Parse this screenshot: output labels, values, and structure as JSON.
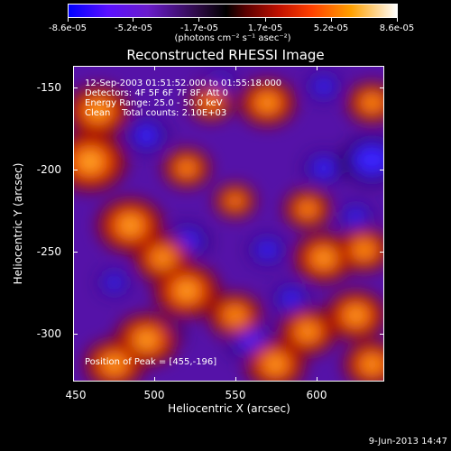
{
  "colorbar": {
    "tick_labels": [
      "-8.6e-05",
      "-5.2e-05",
      "-1.7e-05",
      "1.7e-05",
      "5.2e-05",
      "8.6e-05"
    ],
    "units": "(photons cm⁻² s⁻¹ asec⁻²)",
    "colors": [
      "#0000ff",
      "#6a00ff",
      "#000000",
      "#8a0000",
      "#ff3000",
      "#ffd000",
      "#ffffff"
    ]
  },
  "plot": {
    "title": "Reconstructed RHESSI Image",
    "info_lines": [
      "12-Sep-2003 01:51:52.000 to 01:55:18.000",
      "Detectors: 4F 5F 6F 7F 8F, Att 0",
      "Energy Range: 25.0 - 50.0 keV",
      "Clean    Total counts: 2.10E+03"
    ],
    "peak_text": "Position of Peak = [455,-196]",
    "xlabel": "Heliocentric X (arcsec)",
    "ylabel": "Heliocentric Y (arcsec)",
    "x_ticks": [
      "450",
      "500",
      "550",
      "600"
    ],
    "y_ticks": [
      "-150",
      "-200",
      "-250",
      "-300"
    ]
  },
  "footer": {
    "date": "9-Jun-2013 14:47"
  },
  "chart_data": {
    "type": "heatmap",
    "title": "Reconstructed RHESSI Image",
    "xlabel": "Heliocentric X (arcsec)",
    "ylabel": "Heliocentric Y (arcsec)",
    "xlim": [
      445,
      637
    ],
    "ylim": [
      -330,
      -138
    ],
    "value_range": [
      -8.6e-05,
      8.6e-05
    ],
    "colorscale": "blue-purple-black-red-yellow-white",
    "peak": [
      455,
      -196
    ],
    "hot_regions": [
      {
        "x": 455,
        "y": -196,
        "value": 8.6e-05
      },
      {
        "x": 460,
        "y": -165,
        "value": 7e-05
      },
      {
        "x": 480,
        "y": -235,
        "value": 7.5e-05
      },
      {
        "x": 500,
        "y": -255,
        "value": 6e-05
      },
      {
        "x": 515,
        "y": -275,
        "value": 7.5e-05
      },
      {
        "x": 490,
        "y": -305,
        "value": 7e-05
      },
      {
        "x": 470,
        "y": -320,
        "value": 6.5e-05
      },
      {
        "x": 545,
        "y": -290,
        "value": 5.5e-05
      },
      {
        "x": 570,
        "y": -320,
        "value": 6.5e-05
      },
      {
        "x": 590,
        "y": -300,
        "value": 6e-05
      },
      {
        "x": 600,
        "y": -255,
        "value": 6.5e-05
      },
      {
        "x": 620,
        "y": -290,
        "value": 6.5e-05
      },
      {
        "x": 625,
        "y": -250,
        "value": 5.5e-05
      },
      {
        "x": 590,
        "y": -225,
        "value": 4.5e-05
      },
      {
        "x": 565,
        "y": -160,
        "value": 6e-05
      },
      {
        "x": 630,
        "y": -160,
        "value": 5e-05
      },
      {
        "x": 530,
        "y": -160,
        "value": 4e-05
      },
      {
        "x": 515,
        "y": -200,
        "value": 4.5e-05
      },
      {
        "x": 630,
        "y": -320,
        "value": 6e-05
      },
      {
        "x": 545,
        "y": -220,
        "value": 3.5e-05
      }
    ],
    "cold_regions": [
      {
        "x": 490,
        "y": -180,
        "value": -5e-05
      },
      {
        "x": 630,
        "y": -195,
        "value": -8.6e-05
      },
      {
        "x": 600,
        "y": -200,
        "value": -4.5e-05
      },
      {
        "x": 515,
        "y": -245,
        "value": -5.5e-05
      },
      {
        "x": 565,
        "y": -250,
        "value": -4e-05
      },
      {
        "x": 500,
        "y": -300,
        "value": -5.5e-05
      },
      {
        "x": 555,
        "y": -305,
        "value": -6.5e-05
      },
      {
        "x": 535,
        "y": -150,
        "value": -4e-05
      },
      {
        "x": 600,
        "y": -150,
        "value": -3.5e-05
      },
      {
        "x": 580,
        "y": -280,
        "value": -4e-05
      },
      {
        "x": 470,
        "y": -270,
        "value": -3e-05
      },
      {
        "x": 620,
        "y": -230,
        "value": -3.5e-05
      }
    ]
  }
}
